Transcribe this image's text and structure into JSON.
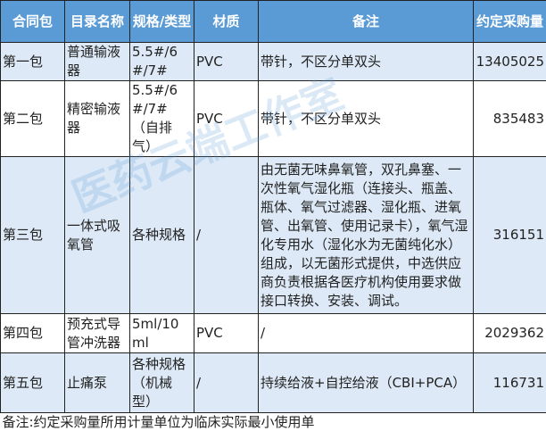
{
  "headers": [
    "合同包",
    "目录名称",
    "规格/类型",
    "材质",
    "备注",
    "约定采购量"
  ],
  "rows": [
    {
      "package": "第一包",
      "name": "普通输液器",
      "spec": "5.5#/6#/7#",
      "material": "PVC",
      "note": "带针，不区分单双头",
      "quantity": "13405025"
    },
    {
      "package": "第二包",
      "name": "精密输液器",
      "spec": "5.5#/6#/7#（自排气）",
      "material": "PVC",
      "note": "带针，不区分单双头",
      "quantity": "835483"
    },
    {
      "package": "第三包",
      "name": "一体式吸氧管",
      "spec": "各种规格",
      "material": "/",
      "note": "由无菌无味鼻氧管，双孔鼻塞、一次性氧气湿化瓶（连接头、瓶盖、瓶体、氧气过滤器、湿化瓶、进氧管、出氧管、使用记录卡），氧气湿化专用水（湿化水为无菌纯化水）组成，以无菌形式提供，中选供应商负责根据各医疗机构使用要求做接口转换、安装、调试。",
      "quantity": "316151"
    },
    {
      "package": "第四包",
      "name": "预充式导管冲洗器",
      "spec": "5ml/10ml",
      "material": "PVC",
      "note": "/",
      "quantity": "2029362"
    },
    {
      "package": "第五包",
      "name": "止痛泵",
      "spec": "各种规格（机械型）",
      "material": "/",
      "note": "持续给液+自控给液（CBI+PCA）",
      "quantity": "116731"
    }
  ],
  "footnote": "备注:约定采购量所用计量单位为临床实际最小使用单",
  "watermark": "医药云端工作室",
  "colors": {
    "header": "#5b9bd5",
    "alt_row": "#dde9f6"
  }
}
